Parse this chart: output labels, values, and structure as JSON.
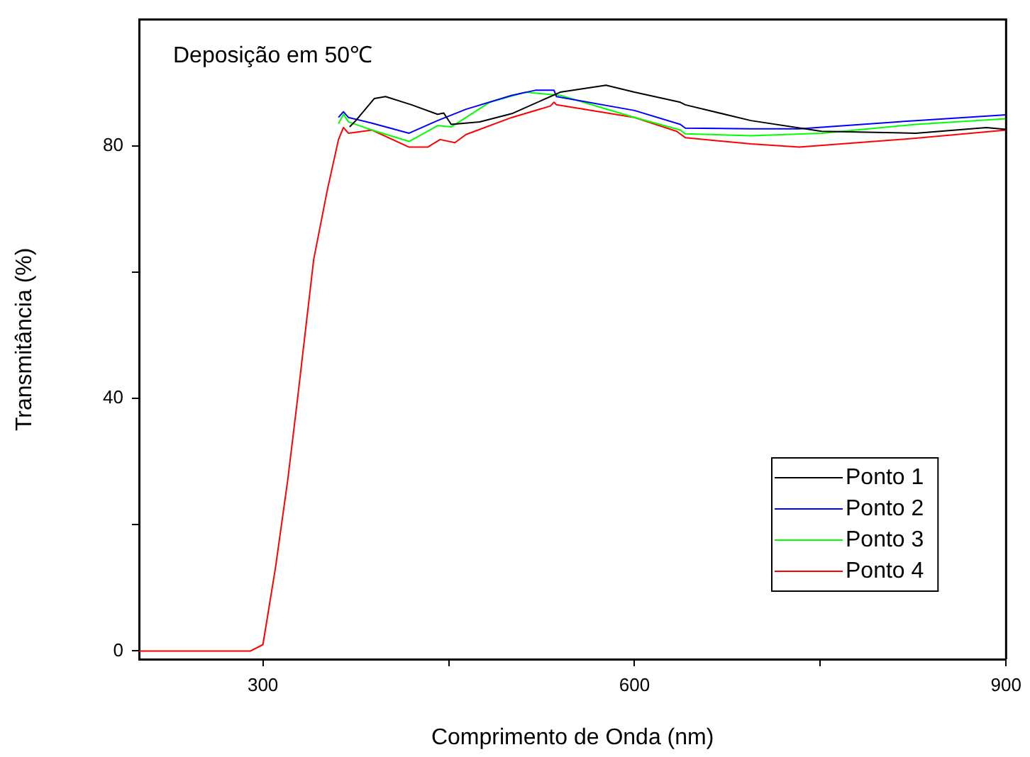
{
  "chart_data": {
    "type": "line",
    "xlabel": "Comprimento de Onda (nm)",
    "ylabel": "Transmitância (%)",
    "annotations": [
      "Deposição em 50℃"
    ],
    "xlim": [
      200,
      900
    ],
    "xticks": [
      300,
      {
        "value": 450,
        "label": null
      },
      600,
      {
        "value": 750,
        "label": null
      },
      900
    ],
    "ylim": [
      -1.3,
      100
    ],
    "yticks": [
      0,
      {
        "value": 20,
        "label": null
      },
      40,
      {
        "value": 60,
        "label": null
      },
      80
    ],
    "grid": false,
    "legend": "bottom right",
    "marker": "none",
    "line_style": "solid",
    "series": [
      {
        "name": "Ponto 1",
        "color": "#000000",
        "x": [
          370,
          375,
          390,
          399,
          420,
          441,
          446,
          452,
          475,
          501,
          540,
          577,
          600,
          637,
          641,
          694,
          751,
          827,
          884,
          900
        ],
        "values": [
          83,
          84,
          87.5,
          87.8,
          86.5,
          85,
          85.2,
          83.4,
          83.8,
          85.1,
          88.5,
          89.6,
          88.5,
          86.9,
          86.5,
          84,
          82.3,
          82,
          82.9,
          82.6
        ]
      },
      {
        "name": "Ponto 2",
        "color": "#0000ff",
        "x": [
          361,
          365,
          369,
          388,
          418,
          441,
          464,
          501,
          520,
          535,
          537,
          600,
          637,
          641,
          694,
          733,
          827,
          900
        ],
        "values": [
          84.5,
          85.4,
          84.5,
          83.6,
          82,
          84,
          85.8,
          88,
          88.8,
          88.8,
          87.8,
          85.6,
          83.4,
          82.8,
          82.7,
          82.7,
          84,
          84.9
        ]
      },
      {
        "name": "Ponto 3",
        "color": "#00ff00",
        "x": [
          361,
          365,
          369,
          388,
          418,
          441,
          452,
          483,
          512,
          540,
          600,
          637,
          641,
          694,
          751,
          827,
          900
        ],
        "values": [
          83.5,
          85,
          83.8,
          82.5,
          80.7,
          83.2,
          83,
          86.9,
          88.5,
          88,
          84.5,
          82.5,
          81.9,
          81.6,
          82,
          83.4,
          84.3
        ]
      },
      {
        "name": "Ponto 4",
        "color": "#ff0000",
        "x": [
          200,
          290,
          300,
          310,
          320,
          328,
          341,
          352,
          361,
          365,
          369,
          388,
          418,
          433,
          443,
          455,
          464,
          501,
          532,
          535,
          537,
          600,
          634,
          641,
          694,
          733,
          827,
          900
        ],
        "values": [
          0,
          0,
          1,
          13,
          27,
          40,
          62,
          73,
          81,
          82.9,
          82,
          82.5,
          79.8,
          79.8,
          81,
          80.5,
          81.8,
          84.5,
          86.3,
          86.9,
          86.5,
          84.5,
          82.3,
          81.3,
          80.3,
          79.8,
          81.2,
          82.5
        ]
      }
    ]
  }
}
